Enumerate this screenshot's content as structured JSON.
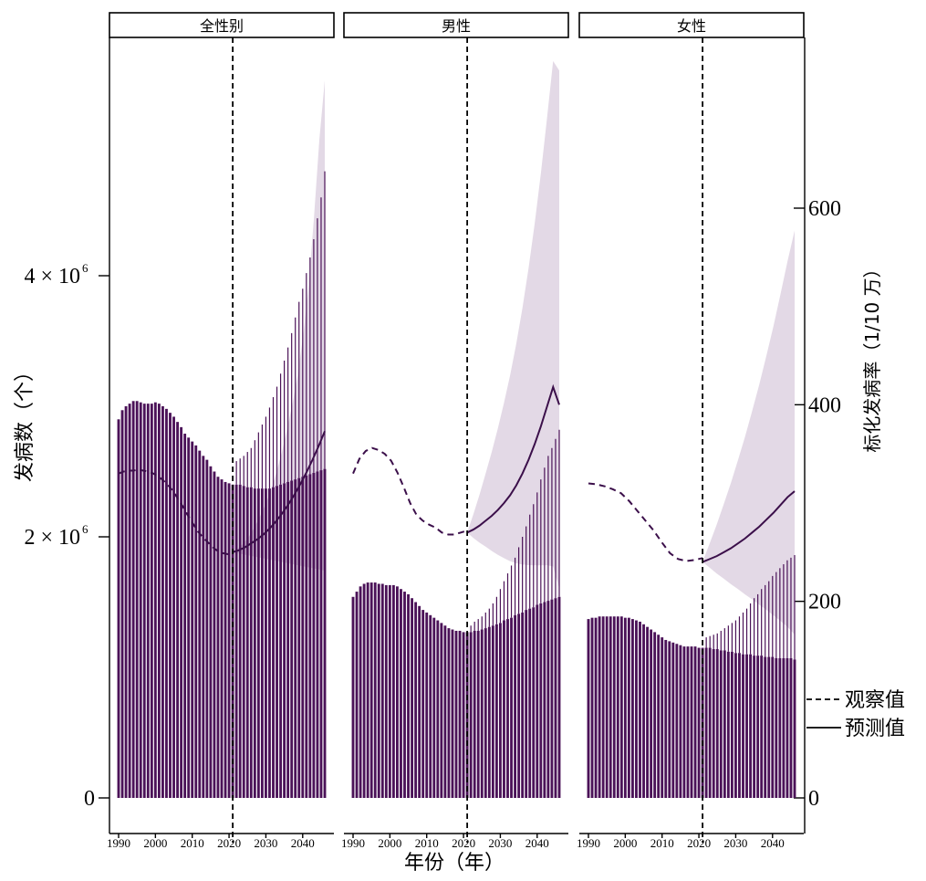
{
  "chart_data": {
    "type": "bar",
    "panels": [
      {
        "label": "全性别",
        "years": [
          1990,
          1991,
          1992,
          1993,
          1994,
          1995,
          1996,
          1997,
          1998,
          1999,
          2000,
          2001,
          2002,
          2003,
          2004,
          2005,
          2006,
          2007,
          2008,
          2009,
          2010,
          2011,
          2012,
          2013,
          2014,
          2015,
          2016,
          2017,
          2018,
          2019,
          2020,
          2021,
          2022,
          2023,
          2024,
          2025,
          2026,
          2027,
          2028,
          2029,
          2030,
          2031,
          2032,
          2033,
          2034,
          2035,
          2036,
          2037,
          2038,
          2039,
          2040,
          2041,
          2042,
          2043,
          2044,
          2045,
          2046
        ],
        "cases_observed": [
          2900000,
          2970000,
          3000000,
          3020000,
          3040000,
          3040000,
          3030000,
          3020000,
          3020000,
          3020000,
          3030000,
          3020000,
          3000000,
          2980000,
          2950000,
          2920000,
          2880000,
          2840000,
          2790000,
          2760000,
          2730000,
          2700000,
          2660000,
          2620000,
          2590000,
          2540000,
          2500000,
          2460000,
          2440000,
          2420000,
          2410000,
          2400000
        ],
        "cases_pred_low": [
          2400000,
          2400000,
          2390000,
          2380000,
          2380000,
          2370000,
          2370000,
          2370000,
          2370000,
          2370000,
          2380000,
          2390000,
          2400000,
          2410000,
          2420000,
          2430000,
          2440000,
          2450000,
          2460000,
          2470000,
          2480000,
          2490000,
          2500000,
          2510000,
          2520000,
          2530000
        ],
        "cases_pred_high": [
          2580000,
          2600000,
          2620000,
          2650000,
          2680000,
          2740000,
          2800000,
          2860000,
          2920000,
          2990000,
          3070000,
          3150000,
          3250000,
          3350000,
          3450000,
          3560000,
          3680000,
          3800000,
          3900000,
          4020000,
          4140000,
          4280000,
          4440000,
          4600000,
          4800000,
          5000000
        ],
        "rate_observed": [
          330,
          332,
          333,
          333,
          334,
          333,
          332,
          330,
          327,
          323,
          318,
          312,
          304,
          296,
          287,
          279,
          271,
          265,
          260,
          255,
          251,
          249,
          248,
          250
        ],
        "rate_predicted": [
          250,
          252,
          255,
          259,
          263,
          268,
          274,
          281,
          289,
          298,
          308,
          319,
          331,
          344,
          358,
          373
        ],
        "rate_ci_upper": [
          250,
          254,
          259,
          266,
          275,
          286,
          298,
          312,
          330,
          350,
          374,
          400,
          430,
          470,
          520,
          590,
          670,
          730
        ]
      },
      {
        "label": "男性",
        "years": [
          1990,
          1991,
          1992,
          1993,
          1994,
          1995,
          1996,
          1997,
          1998,
          1999,
          2000,
          2001,
          2002,
          2003,
          2004,
          2005,
          2006,
          2007,
          2008,
          2009,
          2010,
          2011,
          2012,
          2013,
          2014,
          2015,
          2016,
          2017,
          2018,
          2019,
          2020,
          2021,
          2022,
          2023,
          2024,
          2025,
          2026,
          2027,
          2028,
          2029,
          2030,
          2031,
          2032,
          2033,
          2034,
          2035,
          2036,
          2037,
          2038,
          2039,
          2040,
          2041,
          2042,
          2043,
          2044,
          2045,
          2046
        ],
        "cases_observed": [
          1540000,
          1580000,
          1620000,
          1640000,
          1650000,
          1650000,
          1650000,
          1640000,
          1640000,
          1630000,
          1630000,
          1630000,
          1620000,
          1600000,
          1580000,
          1560000,
          1530000,
          1500000,
          1470000,
          1440000,
          1420000,
          1400000,
          1380000,
          1360000,
          1340000,
          1320000,
          1300000,
          1290000,
          1280000,
          1280000,
          1270000,
          1270000
        ],
        "cases_pred_low": [
          1270000,
          1280000,
          1280000,
          1290000,
          1300000,
          1310000,
          1320000,
          1330000,
          1340000,
          1360000,
          1370000,
          1380000,
          1400000,
          1410000,
          1420000,
          1440000,
          1450000,
          1460000,
          1480000,
          1490000,
          1500000,
          1510000,
          1520000,
          1530000,
          1540000,
          1550000
        ],
        "cases_pred_high": [
          1320000,
          1350000,
          1370000,
          1390000,
          1420000,
          1450000,
          1490000,
          1540000,
          1600000,
          1660000,
          1720000,
          1780000,
          1840000,
          1920000,
          2000000,
          2080000,
          2170000,
          2250000,
          2340000,
          2440000,
          2530000,
          2620000,
          2680000,
          2750000,
          2820000,
          2890000
        ],
        "rate_observed": [
          330,
          345,
          353,
          356,
          354,
          350,
          343,
          331,
          316,
          300,
          288,
          282,
          278,
          275,
          270,
          268,
          268,
          270,
          272
        ],
        "rate_predicted": [
          270,
          273,
          277,
          282,
          287,
          293,
          300,
          308,
          318,
          330,
          344,
          360,
          378,
          398,
          418,
          400
        ]
      },
      {
        "label": "女性",
        "years": [
          1990,
          1991,
          1992,
          1993,
          1994,
          1995,
          1996,
          1997,
          1998,
          1999,
          2000,
          2001,
          2002,
          2003,
          2004,
          2005,
          2006,
          2007,
          2008,
          2009,
          2010,
          2011,
          2012,
          2013,
          2014,
          2015,
          2016,
          2017,
          2018,
          2019,
          2020,
          2021,
          2022,
          2023,
          2024,
          2025,
          2026,
          2027,
          2028,
          2029,
          2030,
          2031,
          2032,
          2033,
          2034,
          2035,
          2036,
          2037,
          2038,
          2039,
          2040,
          2041,
          2042,
          2043,
          2044,
          2045,
          2046
        ],
        "cases_observed": [
          1370000,
          1380000,
          1380000,
          1390000,
          1390000,
          1390000,
          1390000,
          1390000,
          1390000,
          1390000,
          1380000,
          1380000,
          1370000,
          1360000,
          1350000,
          1330000,
          1310000,
          1290000,
          1270000,
          1250000,
          1230000,
          1210000,
          1200000,
          1190000,
          1180000,
          1170000,
          1160000,
          1160000,
          1160000,
          1160000,
          1150000,
          1150000
        ],
        "cases_pred_low": [
          1150000,
          1150000,
          1140000,
          1140000,
          1130000,
          1130000,
          1120000,
          1120000,
          1110000,
          1110000,
          1100000,
          1100000,
          1100000,
          1090000,
          1090000,
          1090000,
          1080000,
          1080000,
          1080000,
          1070000,
          1070000,
          1070000,
          1070000,
          1070000,
          1060000,
          1060000
        ],
        "cases_pred_high": [
          1230000,
          1240000,
          1250000,
          1260000,
          1280000,
          1300000,
          1320000,
          1340000,
          1360000,
          1390000,
          1420000,
          1450000,
          1490000,
          1530000,
          1560000,
          1600000,
          1630000,
          1660000,
          1700000,
          1730000,
          1760000,
          1790000,
          1820000,
          1840000,
          1860000,
          1880000
        ],
        "rate_observed": [
          320,
          319,
          317,
          314,
          310,
          302,
          292,
          282,
          272,
          260,
          249,
          243,
          241,
          242,
          244
        ],
        "rate_predicted": [
          240,
          243,
          246,
          250,
          254,
          259,
          264,
          270,
          276,
          283,
          290,
          298,
          306,
          312
        ]
      }
    ],
    "split_year": 2021,
    "y_left": {
      "label": "发病数（个）",
      "ticks": [
        0,
        2000000,
        4000000
      ],
      "tick_labels": [
        "0",
        "2 × 10",
        "4 × 10"
      ],
      "tick_label_sup": "6",
      "ylim": [
        0,
        5600000
      ]
    },
    "y_right": {
      "label": "标化发病率（1/10 万）",
      "ticks": [
        0,
        200,
        400,
        600
      ],
      "tick_labels": [
        "0",
        "200",
        "400",
        "600"
      ]
    },
    "x": {
      "label": "年份（年）",
      "ticks": [
        1990,
        2000,
        2010,
        2020,
        2030,
        2040
      ],
      "tick_labels": [
        "1990",
        "2000",
        "2010",
        "2020",
        "2030",
        "2040"
      ]
    },
    "legend": {
      "position": "right",
      "items": [
        {
          "label": "观察值",
          "style": "dashed"
        },
        {
          "label": "预测值",
          "style": "solid"
        }
      ]
    },
    "colors": {
      "bar": "#4b1258",
      "line": "#3b0f4a",
      "ci_band": "#e3d9e6"
    }
  }
}
